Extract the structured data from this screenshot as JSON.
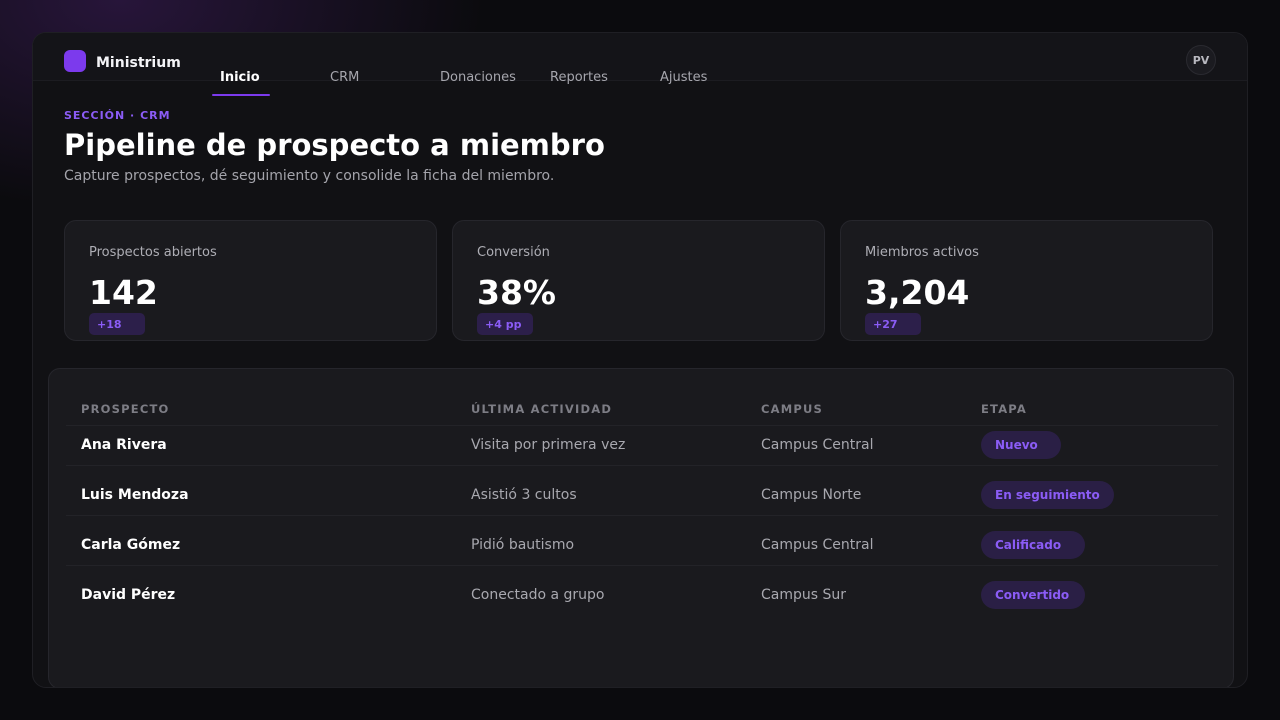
{
  "app": {
    "brand": "Ministrium",
    "avatar_initials": "PV",
    "accent_color": "#7c3aed"
  },
  "nav": {
    "tabs": [
      {
        "label": "Inicio",
        "active": true
      },
      {
        "label": "CRM",
        "active": false
      },
      {
        "label": "Donaciones",
        "active": false
      },
      {
        "label": "Reportes",
        "active": false
      },
      {
        "label": "Ajustes",
        "active": false
      }
    ]
  },
  "header": {
    "eyebrow": "SECCIÓN · CRM",
    "title": "Pipeline de prospecto a miembro",
    "subtitle": "Capture prospectos, dé seguimiento y consolide la ficha del miembro."
  },
  "stats": [
    {
      "label": "Prospectos abiertos",
      "value": "142",
      "delta": "+18"
    },
    {
      "label": "Conversión",
      "value": "38%",
      "delta": "+4 pp"
    },
    {
      "label": "Miembros activos",
      "value": "3,204",
      "delta": "+27"
    }
  ],
  "table": {
    "columns": [
      "PROSPECTO",
      "ÚLTIMA ACTIVIDAD",
      "CAMPUS",
      "ETAPA"
    ],
    "rows": [
      {
        "name": "Ana Rivera",
        "activity": "Visita por primera vez",
        "campus": "Campus Central",
        "stage": "Nuevo"
      },
      {
        "name": "Luis Mendoza",
        "activity": "Asistió 3 cultos",
        "campus": "Campus Norte",
        "stage": "En seguimiento"
      },
      {
        "name": "Carla Gómez",
        "activity": "Pidió bautismo",
        "campus": "Campus Central",
        "stage": "Calificado"
      },
      {
        "name": "David Pérez",
        "activity": "Conectado a grupo",
        "campus": "Campus Sur",
        "stage": "Convertido"
      }
    ]
  }
}
